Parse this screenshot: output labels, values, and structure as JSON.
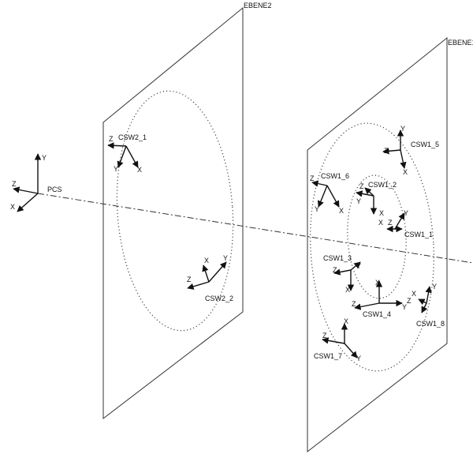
{
  "planes": {
    "ebene2": {
      "label": "EBENE2"
    },
    "ebene1": {
      "label": "EBENE1"
    }
  },
  "pcs": {
    "label": "PCS",
    "x": "X",
    "y": "Y",
    "z": "Z"
  },
  "frames": [
    {
      "name": "CSW2_1",
      "x": "X",
      "y": "Y",
      "z": "Z"
    },
    {
      "name": "CSW2_2",
      "x": "X",
      "y": "Y",
      "z": "Z"
    },
    {
      "name": "CSW1_5",
      "x": "X",
      "y": "Y",
      "z": "Z"
    },
    {
      "name": "CSW1_6",
      "x": "X",
      "y": "Y",
      "z": "Z"
    },
    {
      "name": "CSW1_2",
      "x": "X",
      "y": "Y",
      "z": "Z"
    },
    {
      "name": "CSW1_1",
      "x": "X",
      "y": "Y",
      "z": "Z"
    },
    {
      "name": "CSW1_3",
      "x": "X",
      "y": "Y",
      "z": "Z"
    },
    {
      "name": "CSW1_4",
      "x": "X",
      "y": "Y",
      "z": "Z"
    },
    {
      "name": "CSW1_8",
      "x": "X",
      "y": "Y",
      "z": "Z"
    },
    {
      "name": "CSW1_7",
      "x": "X",
      "y": "Y",
      "z": "Z"
    }
  ]
}
